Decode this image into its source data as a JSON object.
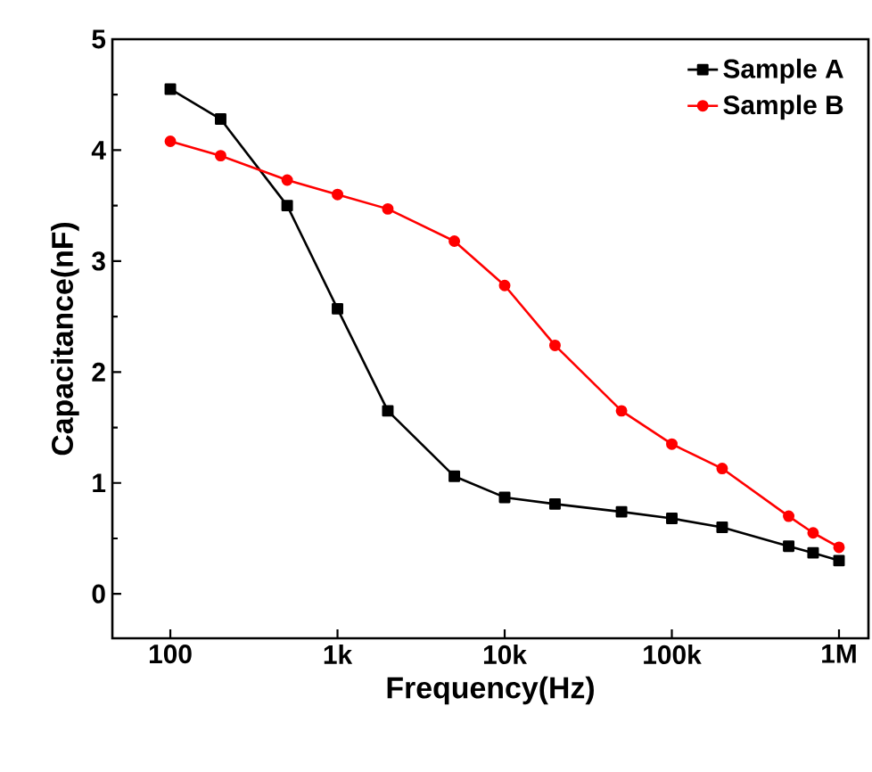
{
  "chart_data": {
    "type": "line",
    "xlabel": "Frequency(Hz)",
    "ylabel": "Capacitance(nF)",
    "log": "x",
    "legend": "top right",
    "grid": false,
    "line_style": "solid",
    "x": [
      100,
      200,
      500,
      1000,
      2000,
      5000,
      10000,
      20000,
      50000,
      100000,
      200000,
      500000,
      700000,
      1000000
    ],
    "series": [
      {
        "name": "Sample A",
        "color": "#000000",
        "marker": "square",
        "values": [
          4.55,
          4.28,
          3.5,
          2.57,
          1.65,
          1.06,
          0.87,
          0.81,
          0.74,
          0.68,
          0.6,
          0.43,
          0.37,
          0.3
        ]
      },
      {
        "name": "Sample B",
        "color": "#ff0000",
        "marker": "circle",
        "values": [
          4.08,
          3.95,
          3.73,
          3.6,
          3.47,
          3.18,
          2.78,
          2.24,
          1.65,
          1.35,
          1.13,
          0.7,
          0.55,
          0.42
        ]
      }
    ],
    "xlim": [
      45,
      1500000
    ],
    "ylim": [
      -0.4,
      5
    ],
    "xticks": [
      100,
      {
        "value": 1000,
        "label": "1k"
      },
      {
        "value": 10000,
        "label": "10k"
      },
      {
        "value": 100000,
        "label": "100k"
      },
      {
        "value": 1000000,
        "label": "1M"
      }
    ],
    "yticks": [
      0,
      1,
      2,
      3,
      4,
      5
    ]
  }
}
